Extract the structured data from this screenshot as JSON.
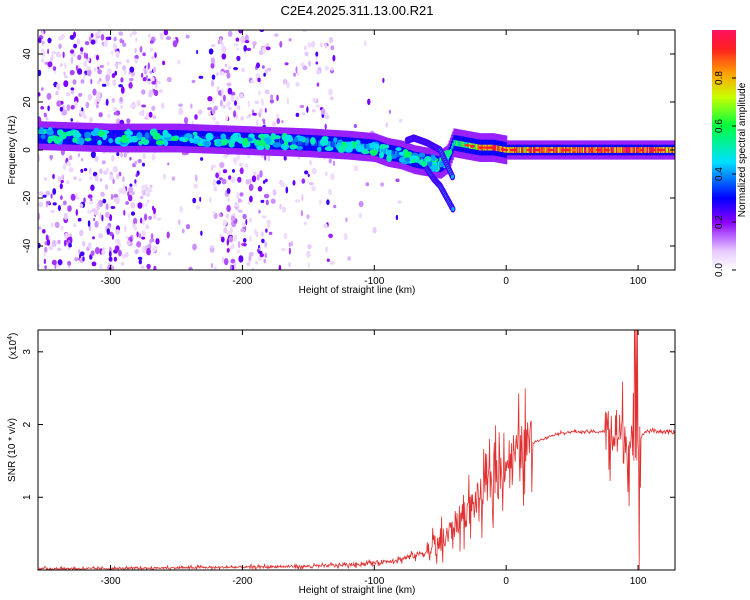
{
  "title": "C2E4.2025.311.13.00.R21",
  "chart_data": [
    {
      "type": "heatmap",
      "xlabel": "Height of straight line (km)",
      "ylabel": "Frequency (Hz)",
      "xlim": [
        -355,
        128
      ],
      "ylim": [
        -50,
        50
      ],
      "xticks": [
        -300,
        -200,
        -100,
        0,
        100
      ],
      "yticks": [
        -40,
        -20,
        0,
        20,
        40
      ],
      "colorbar": {
        "label": "Normalized spectral amplitude",
        "range": [
          0.0,
          1.0
        ],
        "ticks": [
          "0.0",
          "0.2",
          "0.4",
          "0.6",
          "0.8"
        ],
        "tick_values": [
          0.0,
          0.2,
          0.4,
          0.6,
          0.8
        ]
      },
      "ridge": {
        "x": [
          -355,
          -300,
          -250,
          -200,
          -150,
          -120,
          -100,
          -90,
          -80,
          -70,
          -60,
          -50,
          -45,
          -40,
          -30,
          -20,
          -10,
          0,
          20,
          50,
          100,
          128
        ],
        "y": [
          6,
          5,
          5,
          4,
          3,
          2,
          1,
          -1,
          -2,
          -4,
          -5,
          -6,
          -4,
          3,
          2,
          1,
          1,
          0,
          0,
          0,
          0,
          0
        ],
        "amplitude": [
          0.3,
          0.3,
          0.32,
          0.3,
          0.35,
          0.4,
          0.45,
          0.45,
          0.4,
          0.4,
          0.42,
          0.42,
          0.45,
          0.55,
          0.6,
          0.8,
          0.9,
          0.8,
          0.85,
          0.9,
          0.95,
          0.85
        ]
      },
      "secondary_branch": {
        "x": [
          -75,
          -70,
          -60,
          -50,
          -45,
          -40
        ],
        "y": [
          4,
          5,
          3,
          0,
          -6,
          -12
        ]
      },
      "lower_branch": {
        "x": [
          -60,
          -55,
          -50,
          -45,
          -40
        ],
        "y": [
          -8,
          -12,
          -15,
          -20,
          -25
        ]
      },
      "noise_bands": [
        {
          "x_from": -355,
          "x_to": -265,
          "density": 1.0
        },
        {
          "x_from": -265,
          "x_to": -230,
          "density": 0.25
        },
        {
          "x_from": -225,
          "x_to": -180,
          "density": 1.0
        },
        {
          "x_from": -180,
          "x_to": -130,
          "density": 0.4
        },
        {
          "x_from": -130,
          "x_to": -80,
          "density": 0.08
        }
      ]
    },
    {
      "type": "line",
      "xlabel": "Height of straight line (km)",
      "ylabel": "SNR (10 * v/v)",
      "scale_label": "(x10",
      "scale_exp": "4",
      "scale_close": ")",
      "xlim": [
        -355,
        128
      ],
      "ylim": [
        0,
        3.3
      ],
      "xticks": [
        -300,
        -200,
        -100,
        0,
        100
      ],
      "yticks": [
        1,
        2,
        3
      ],
      "series": [
        {
          "name": "SNR",
          "color": "#e03030",
          "x": [
            -355,
            -300,
            -250,
            -200,
            -150,
            -120,
            -100,
            -90,
            -80,
            -70,
            -60,
            -50,
            -45,
            -40,
            -35,
            -30,
            -25,
            -20,
            -15,
            -10,
            -5,
            0,
            10,
            20,
            30,
            40,
            50,
            60,
            70,
            80,
            85,
            90,
            95,
            100,
            105,
            110,
            120,
            128
          ],
          "y": [
            0.02,
            0.02,
            0.03,
            0.04,
            0.05,
            0.07,
            0.1,
            0.12,
            0.15,
            0.2,
            0.25,
            0.35,
            0.45,
            0.6,
            0.7,
            0.8,
            0.9,
            1.0,
            1.1,
            1.25,
            1.4,
            1.5,
            1.65,
            1.75,
            1.82,
            1.88,
            1.9,
            1.9,
            1.9,
            1.9,
            1.85,
            1.8,
            1.7,
            1.75,
            1.9,
            1.92,
            1.9,
            1.88
          ]
        }
      ]
    }
  ]
}
